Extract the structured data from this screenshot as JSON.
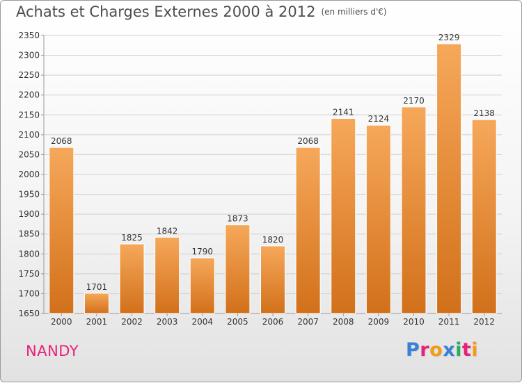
{
  "title": "Achats et Charges Externes 2000 à 2012",
  "unit_note": "(en milliers d'€)",
  "place_name": "NANDY",
  "brand": {
    "text": "Proxiti",
    "letter_colors": [
      "#3a7fd5",
      "#e8207a",
      "#f39c12",
      "#3a7fd5",
      "#27ae60",
      "#e8207a",
      "#f39c12"
    ]
  },
  "colors": {
    "bar_top": "#f6a85a",
    "bar_bottom": "#d2701a",
    "grid": "#d0d0d0",
    "axis_text": "#333333"
  },
  "chart_data": {
    "type": "bar",
    "title": "Achats et Charges Externes 2000 à 2012",
    "subtitle": "(en milliers d'€)",
    "xlabel": "",
    "ylabel": "",
    "categories": [
      "2000",
      "2001",
      "2002",
      "2003",
      "2004",
      "2005",
      "2006",
      "2007",
      "2008",
      "2009",
      "2010",
      "2011",
      "2012"
    ],
    "values": [
      2068,
      1701,
      1825,
      1842,
      1790,
      1873,
      1820,
      2068,
      2141,
      2124,
      2170,
      2329,
      2138
    ],
    "ylim": [
      1650,
      2350
    ],
    "yticks": [
      1650,
      1700,
      1750,
      1800,
      1850,
      1900,
      1950,
      2000,
      2050,
      2100,
      2150,
      2200,
      2250,
      2300,
      2350
    ],
    "grid": true,
    "legend": "none"
  }
}
